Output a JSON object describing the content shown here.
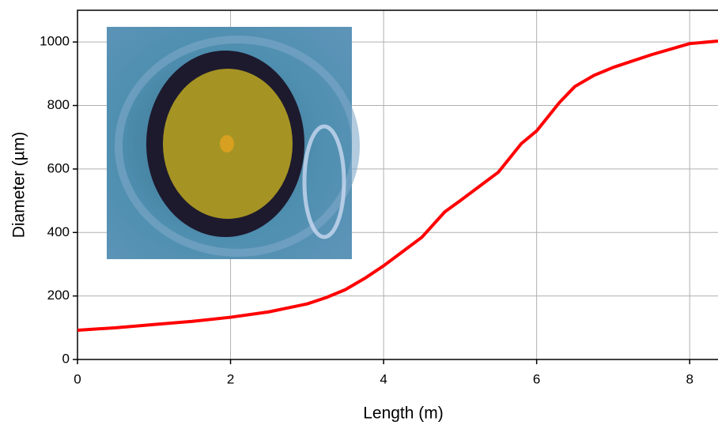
{
  "chart_data": {
    "type": "line",
    "x_label": "Length (m)",
    "y_label": "Diameter (µm)",
    "x": [
      0,
      0.5,
      1,
      1.5,
      2,
      2.5,
      3,
      3.25,
      3.5,
      3.75,
      4,
      4.25,
      4.5,
      4.8,
      5,
      5.25,
      5.5,
      5.8,
      6,
      6.3,
      6.5,
      6.75,
      7,
      7.5,
      8,
      8.37
    ],
    "values": [
      92,
      100,
      110,
      120,
      133,
      150,
      175,
      195,
      220,
      255,
      295,
      340,
      385,
      465,
      500,
      545,
      590,
      680,
      720,
      810,
      860,
      895,
      920,
      960,
      995,
      1003
    ],
    "color": "#ff0000",
    "xlim": [
      0,
      8.37
    ],
    "ylim": [
      0,
      1100
    ],
    "xticks": [
      0,
      2,
      4,
      6,
      8
    ],
    "yticks": [
      0,
      200,
      400,
      600,
      800,
      1000
    ],
    "grid": true
  }
}
